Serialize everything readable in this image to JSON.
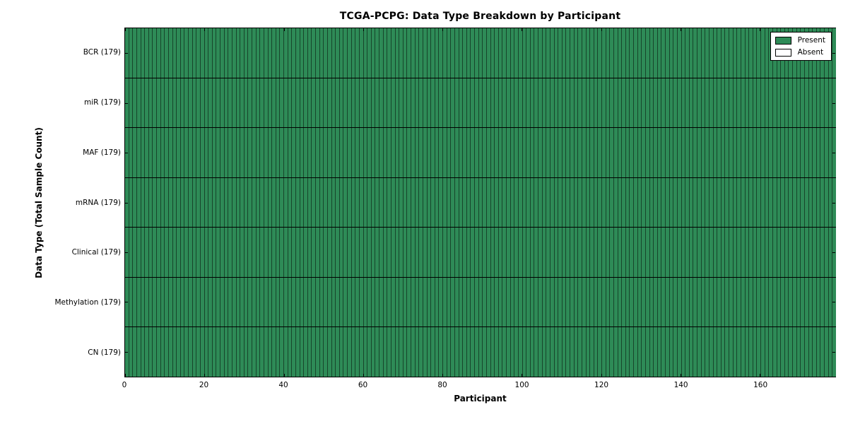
{
  "figure": {
    "title": "TCGA-PCPG: Data Type Breakdown by Participant",
    "xlabel": "Participant",
    "ylabel": "Data Type (Total Sample Count)"
  },
  "legend": {
    "items": [
      {
        "label": "Present",
        "color": "#2E8B57"
      },
      {
        "label": "Absent",
        "color": "#FFFFFF"
      }
    ]
  },
  "chart_data": {
    "type": "heatmap",
    "title": "TCGA-PCPG: Data Type Breakdown by Participant",
    "xlabel": "Participant",
    "ylabel": "Data Type (Total Sample Count)",
    "categories": [
      "BCR (179)",
      "miR (179)",
      "MAF (179)",
      "mRNA (179)",
      "Clinical (179)",
      "Methylation (179)",
      "CN (179)"
    ],
    "series": [
      {
        "name": "BCR",
        "total_samples": 179,
        "present": 179,
        "absent": 0
      },
      {
        "name": "miR",
        "total_samples": 179,
        "present": 179,
        "absent": 0
      },
      {
        "name": "MAF",
        "total_samples": 179,
        "present": 179,
        "absent": 0
      },
      {
        "name": "mRNA",
        "total_samples": 179,
        "present": 179,
        "absent": 0
      },
      {
        "name": "Clinical",
        "total_samples": 179,
        "present": 179,
        "absent": 0
      },
      {
        "name": "Methylation",
        "total_samples": 179,
        "present": 179,
        "absent": 0
      },
      {
        "name": "CN",
        "total_samples": 179,
        "present": 179,
        "absent": 0
      }
    ],
    "n_participants": 179,
    "xlim": [
      0,
      179
    ],
    "x_ticks": [
      0,
      20,
      40,
      60,
      80,
      100,
      120,
      140,
      160
    ],
    "all_cells": "Present",
    "grid": false,
    "legend_position": "upper right",
    "legend_entries": [
      "Present",
      "Absent"
    ],
    "colors": {
      "present": "#2E8B57",
      "absent": "#FFFFFF",
      "cell_edge": "rgba(0,0,0,0.5)",
      "frame": "#000000"
    }
  }
}
